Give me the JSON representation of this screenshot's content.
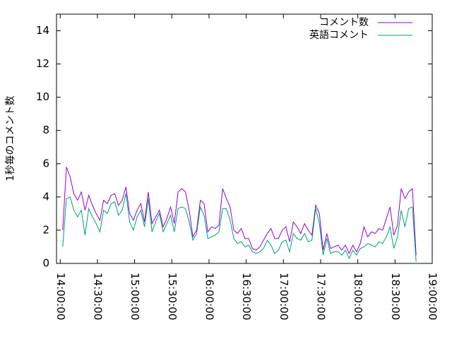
{
  "chart_data": {
    "type": "line",
    "ylabel": "1秒毎のコメント数",
    "x": [
      "14:02:00",
      "14:05:00",
      "14:08:00",
      "14:11:00",
      "14:14:00",
      "14:17:00",
      "14:20:00",
      "14:23:00",
      "14:26:00",
      "14:29:00",
      "14:32:00",
      "14:35:00",
      "14:38:00",
      "14:41:00",
      "14:44:00",
      "14:47:00",
      "14:50:00",
      "14:53:00",
      "14:56:00",
      "14:59:00",
      "15:02:00",
      "15:05:00",
      "15:08:00",
      "15:11:00",
      "15:14:00",
      "15:17:00",
      "15:20:00",
      "15:23:00",
      "15:26:00",
      "15:29:00",
      "15:32:00",
      "15:35:00",
      "15:38:00",
      "15:41:00",
      "15:44:00",
      "15:47:00",
      "15:50:00",
      "15:53:00",
      "15:56:00",
      "15:59:00",
      "16:02:00",
      "16:05:00",
      "16:08:00",
      "16:11:00",
      "16:14:00",
      "16:17:00",
      "16:20:00",
      "16:23:00",
      "16:26:00",
      "16:29:00",
      "16:32:00",
      "16:35:00",
      "16:38:00",
      "16:41:00",
      "16:44:00",
      "16:47:00",
      "16:50:00",
      "16:53:00",
      "16:56:00",
      "16:59:00",
      "17:02:00",
      "17:05:00",
      "17:08:00",
      "17:11:00",
      "17:14:00",
      "17:17:00",
      "17:20:00",
      "17:23:00",
      "17:26:00",
      "17:29:00",
      "17:32:00",
      "17:35:00",
      "17:38:00",
      "17:41:00",
      "17:44:00",
      "17:47:00",
      "17:50:00",
      "17:53:00",
      "17:56:00",
      "17:59:00",
      "18:02:00",
      "18:05:00",
      "18:08:00",
      "18:11:00",
      "18:14:00",
      "18:17:00",
      "18:20:00",
      "18:23:00",
      "18:26:00",
      "18:29:00",
      "18:32:00",
      "18:35:00",
      "18:38:00",
      "18:41:00",
      "18:44:00",
      "18:47:00"
    ],
    "series": [
      {
        "name": "コメント数",
        "color": "#9400d3",
        "values": [
          2.0,
          5.8,
          5.2,
          4.2,
          3.8,
          4.3,
          3.2,
          4.1,
          3.5,
          3.0,
          2.6,
          3.8,
          3.6,
          4.1,
          4.2,
          3.5,
          3.8,
          4.6,
          3.0,
          2.6,
          3.2,
          3.6,
          2.5,
          4.3,
          2.4,
          2.8,
          3.2,
          2.2,
          2.7,
          3.4,
          2.4,
          4.3,
          4.5,
          4.3,
          3.2,
          1.6,
          2.0,
          3.8,
          3.6,
          1.9,
          2.2,
          2.1,
          2.3,
          4.5,
          3.9,
          3.4,
          2.0,
          1.8,
          2.1,
          1.5,
          1.5,
          0.9,
          0.8,
          1.0,
          1.4,
          1.8,
          2.1,
          1.5,
          1.5,
          2.0,
          2.2,
          1.3,
          2.5,
          2.2,
          1.8,
          2.4,
          2.0,
          1.7,
          3.5,
          3.0,
          0.8,
          1.8,
          0.9,
          1.0,
          1.1,
          0.8,
          1.1,
          0.6,
          1.1,
          0.7,
          1.2,
          2.2,
          1.6,
          1.9,
          1.8,
          2.1,
          2.0,
          2.7,
          3.4,
          1.7,
          2.3,
          4.5,
          3.9,
          4.3,
          4.5,
          0.5
        ]
      },
      {
        "name": "英語コメント",
        "color": "#009e73",
        "values": [
          1.0,
          3.9,
          4.0,
          3.2,
          2.8,
          3.2,
          1.7,
          3.3,
          2.8,
          2.4,
          1.9,
          3.2,
          3.0,
          3.6,
          3.7,
          2.9,
          3.2,
          4.2,
          2.5,
          2.0,
          2.8,
          3.2,
          2.2,
          3.9,
          1.9,
          2.5,
          3.0,
          1.9,
          2.4,
          2.9,
          1.9,
          3.3,
          3.4,
          3.3,
          2.5,
          1.4,
          1.8,
          3.4,
          2.9,
          1.5,
          1.6,
          1.7,
          1.9,
          3.3,
          3.3,
          2.6,
          1.5,
          1.2,
          1.3,
          1.0,
          1.1,
          0.7,
          0.6,
          0.7,
          0.9,
          1.4,
          1.1,
          0.6,
          0.8,
          1.3,
          1.4,
          0.7,
          1.8,
          1.5,
          1.4,
          1.8,
          1.3,
          1.4,
          3.3,
          2.4,
          0.5,
          1.5,
          0.6,
          0.7,
          0.7,
          0.5,
          0.8,
          0.3,
          0.8,
          0.5,
          0.9,
          1.0,
          1.2,
          1.1,
          1.0,
          1.3,
          1.2,
          1.6,
          2.2,
          0.9,
          1.6,
          3.2,
          2.2,
          3.3,
          3.4,
          0.1
        ]
      }
    ],
    "xlim": [
      "13:57:00",
      "19:00:00"
    ],
    "xticks": [
      "14:00:00",
      "14:30:00",
      "15:00:00",
      "15:30:00",
      "16:00:00",
      "16:30:00",
      "17:00:00",
      "17:30:00",
      "18:00:00",
      "18:30:00",
      "19:00:00"
    ],
    "ylim": [
      0,
      15
    ],
    "yticks": [
      0,
      2,
      4,
      6,
      8,
      10,
      12,
      14
    ],
    "legend": "top-right"
  }
}
